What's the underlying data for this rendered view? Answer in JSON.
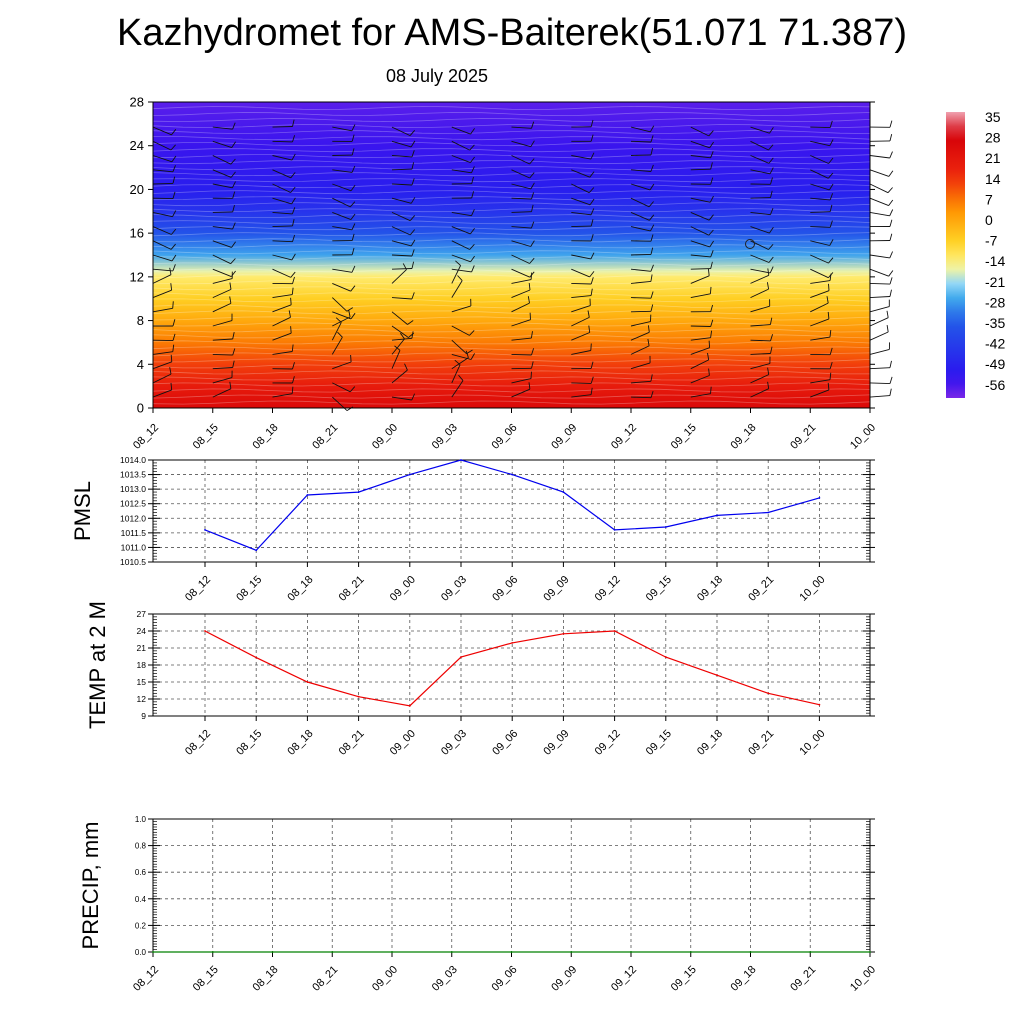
{
  "title": "Kazhydromet for AMS-Baiterek(51.071 71.387)",
  "subtitle": "08 July 2025",
  "colors": {
    "pmsl_line": "#0000ee",
    "temp_line": "#ee0000",
    "precip_line": "#008000",
    "grid": "#555555"
  },
  "chart_data": [
    {
      "type": "heatmap",
      "name": "upper-air temperature cross-section with wind barbs",
      "x_tick_labels": [
        "08_12",
        "08_15",
        "08_18",
        "08_21",
        "09_00",
        "09_03",
        "09_06",
        "09_09",
        "09_12",
        "09_15",
        "09_18",
        "09_21",
        "10_00"
      ],
      "ylim": [
        0,
        28
      ],
      "y_ticks": [
        0,
        4,
        8,
        12,
        16,
        20,
        24,
        28
      ],
      "colorbar_labels": [
        "35",
        "28",
        "21",
        "14",
        "7",
        "0",
        "-7",
        "-14",
        "-21",
        "-28",
        "-35",
        "-42",
        "-49",
        "-56"
      ],
      "color_range": [
        -63,
        42
      ],
      "profile": [
        {
          "level": 0,
          "value": 30
        },
        {
          "level": 2,
          "value": 23
        },
        {
          "level": 4,
          "value": 16
        },
        {
          "level": 6,
          "value": 9
        },
        {
          "level": 8,
          "value": 2
        },
        {
          "level": 10,
          "value": -5
        },
        {
          "level": 12,
          "value": -12
        },
        {
          "level": 12.5,
          "value": -16
        },
        {
          "level": 14,
          "value": -27
        },
        {
          "level": 16,
          "value": -37
        },
        {
          "level": 18,
          "value": -46
        },
        {
          "level": 20,
          "value": -52
        },
        {
          "level": 24,
          "value": -57
        },
        {
          "level": 28,
          "value": -60
        }
      ]
    },
    {
      "type": "line",
      "ylabel": "PMSL",
      "categories": [
        "08_12",
        "08_15",
        "08_18",
        "08_21",
        "09_00",
        "09_03",
        "09_06",
        "09_09",
        "09_12",
        "09_15",
        "09_18",
        "09_21",
        "10_00"
      ],
      "ylim": [
        1010.5,
        1014.0
      ],
      "y_ticks": [
        "1010.5",
        "1011.0",
        "1011.5",
        "1012.0",
        "1012.5",
        "1013.0",
        "1013.5",
        "1014.0"
      ],
      "series": [
        {
          "values": [
            1011.6,
            1010.9,
            1012.8,
            1012.9,
            1013.5,
            1014.0,
            1013.5,
            1012.9,
            1011.6,
            1011.7,
            1012.1,
            1012.2,
            1012.7
          ]
        }
      ]
    },
    {
      "type": "line",
      "ylabel": "TEMP at 2 M",
      "categories": [
        "08_12",
        "08_15",
        "08_18",
        "08_21",
        "09_00",
        "09_03",
        "09_06",
        "09_09",
        "09_12",
        "09_15",
        "09_18",
        "09_21",
        "10_00"
      ],
      "ylim": [
        9,
        27
      ],
      "y_ticks": [
        "9",
        "12",
        "15",
        "18",
        "21",
        "24",
        "27"
      ],
      "series": [
        {
          "values": [
            24.0,
            19.3,
            15.0,
            12.4,
            10.8,
            19.4,
            21.9,
            23.5,
            24.0,
            19.4,
            16.2,
            13.0,
            11.0
          ]
        }
      ]
    },
    {
      "type": "line",
      "ylabel": "PRECIP, mm",
      "x_tick_labels": [
        "08_12",
        "08_15",
        "08_18",
        "08_21",
        "09_00",
        "09_03",
        "09_06",
        "09_09",
        "09_12",
        "09_15",
        "09_18",
        "09_21",
        "10_00"
      ],
      "ylim": [
        0,
        1
      ],
      "y_ticks": [
        "0.0",
        "0.2",
        "0.4",
        "0.6",
        "0.8",
        "1.0"
      ],
      "series": [
        {
          "values": [
            0,
            0,
            0,
            0,
            0,
            0,
            0,
            0,
            0,
            0,
            0,
            0,
            0
          ]
        }
      ]
    }
  ]
}
